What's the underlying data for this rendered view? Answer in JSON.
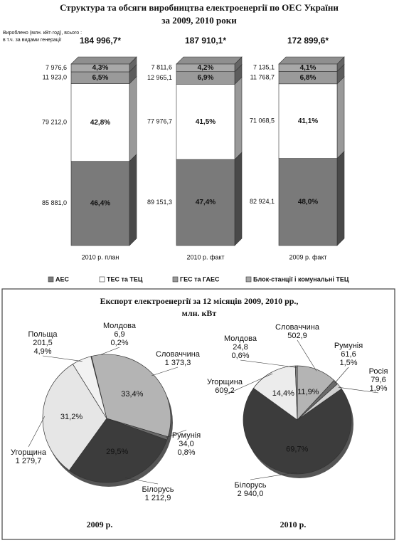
{
  "chart_data": [
    {
      "type": "stacked_bar",
      "title": "Структура та обсяги виробництва електроенергії по ОЕС України",
      "subtitle": "за 2009, 2010 роки",
      "note": [
        "Вироблено (млн. кВт·год), всього :",
        "в т.ч. за видами генерації"
      ],
      "categories": [
        "2010 р. план",
        "2010 р. факт",
        "2009 р. факт"
      ],
      "totals": [
        {
          "value": 184996.7,
          "label": "184 996,7*"
        },
        {
          "value": 187910.1,
          "label": "187 910,1*"
        },
        {
          "value": 172899.6,
          "label": "172 899,6*"
        }
      ],
      "series": [
        {
          "name": "АЕС",
          "color": "#7a7a7a",
          "values": [
            85881.0,
            89151.3,
            82924.1
          ],
          "value_labels": [
            "85 881,0",
            "89 151,3",
            "82 924,1"
          ],
          "shares": [
            46.4,
            47.4,
            48.0
          ],
          "share_labels": [
            "46,4%",
            "47,4%",
            "48,0%"
          ]
        },
        {
          "name": "ТЕС та ТЕЦ",
          "color": "#ffffff",
          "values": [
            79212.0,
            77976.7,
            71068.5
          ],
          "value_labels": [
            "79 212,0",
            "77 976,7",
            "71 068,5"
          ],
          "shares": [
            42.8,
            41.5,
            41.1
          ],
          "share_labels": [
            "42,8%",
            "41,5%",
            "41,1%"
          ]
        },
        {
          "name": "ГЕС та ГАЕС",
          "color": "#9a9a9a",
          "values": [
            11923.0,
            12965.1,
            11768.7
          ],
          "value_labels": [
            "11 923,0",
            "12 965,1",
            "11 768,7"
          ],
          "shares": [
            6.5,
            6.9,
            6.8
          ],
          "share_labels": [
            "6,5%",
            "6,9%",
            "6,8%"
          ]
        },
        {
          "name": "Блок-станції і комунальні ТЕЦ",
          "color": "#a8a8a8",
          "values": [
            7976.6,
            7811.6,
            7135.1
          ],
          "value_labels": [
            "7 976,6",
            "7 811,6",
            "7 135,1"
          ],
          "shares": [
            4.3,
            4.2,
            4.1
          ],
          "share_labels": [
            "4,3%",
            "4,2%",
            "4,1%"
          ]
        }
      ]
    },
    {
      "type": "pie",
      "title": "Експорт електроенергії за 12 місяців 2009, 2010 рр.,",
      "subtitle": "млн. кВт",
      "pies": [
        {
          "label": "2009 р.",
          "categories": [
            "Молдова",
            "Словаччина",
            "Румунія",
            "Білорусь",
            "Угорщина",
            "Польща"
          ],
          "values": [
            6.9,
            1373.3,
            34.0,
            1212.9,
            1279.7,
            201.5
          ],
          "value_labels": [
            "6,9",
            "1 373,3",
            "34,0",
            "1 212,9",
            "1 279,7",
            "201,5"
          ],
          "percents": [
            0.2,
            33.4,
            0.8,
            29.5,
            31.2,
            4.9
          ],
          "percent_labels": [
            "0,2%",
            "33,4%",
            "0,8%",
            "29,5%",
            "31,2%",
            "4,9%"
          ],
          "colors": [
            "#8c8c8c",
            "#b4b4b4",
            "#6a6a6a",
            "#3c3c3c",
            "#e6e6e6",
            "#f2f2f2"
          ]
        },
        {
          "label": "2010 р.",
          "categories": [
            "Словаччина",
            "Румунія",
            "Росія",
            "Білорусь",
            "Угорщина",
            "Молдова"
          ],
          "values": [
            502.9,
            61.6,
            79.6,
            2940.0,
            609.2,
            24.8
          ],
          "value_labels": [
            "502,9",
            "61,6",
            "79,6",
            "2 940,0",
            "609,2",
            "24,8"
          ],
          "percents": [
            11.9,
            1.5,
            1.9,
            69.7,
            14.4,
            0.6
          ],
          "percent_labels": [
            "11,9%",
            "1,5%",
            "1,9%",
            "69,7%",
            "14,4%",
            "0,6%"
          ],
          "colors": [
            "#b4b4b4",
            "#6a6a6a",
            "#d0d0d0",
            "#3c3c3c",
            "#ececec",
            "#8c8c8c"
          ]
        }
      ]
    }
  ]
}
